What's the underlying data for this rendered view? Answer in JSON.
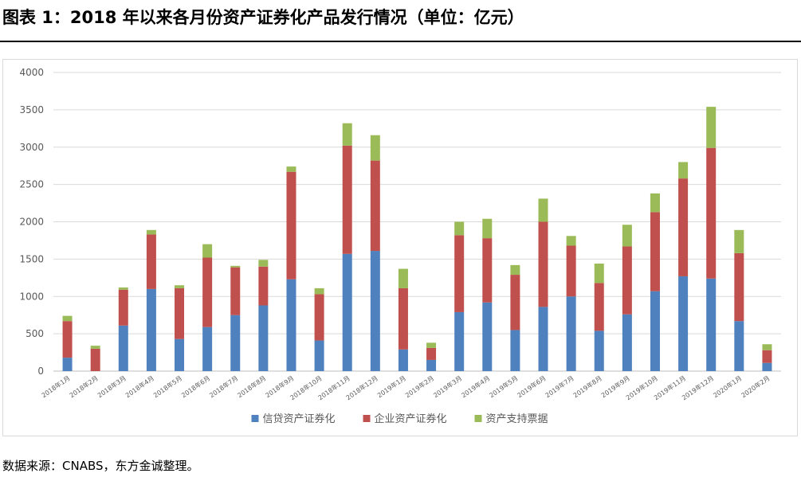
{
  "title": "图表 1：2018 年以来各月份资产证券化产品发行情况（单位：亿元）",
  "source": "数据来源：CNABS，东方金诚整理。",
  "colors": {
    "credit": "#4e81bd",
    "enterprise": "#c0504d",
    "abn": "#9bbb59",
    "grid": "#d9d9d9",
    "axis_text": "#595959"
  },
  "chart_data": {
    "type": "bar",
    "stacked": true,
    "title": "",
    "xlabel": "",
    "ylabel": "",
    "ylim": [
      0,
      4000
    ],
    "yticks": [
      0,
      500,
      1000,
      1500,
      2000,
      2500,
      3000,
      3500,
      4000
    ],
    "grid": true,
    "legend_position": "bottom",
    "categories": [
      "2018年1月",
      "2018年2月",
      "2018年3月",
      "2018年4月",
      "2018年5月",
      "2018年6月",
      "2018年7月",
      "2018年8月",
      "2018年9月",
      "2018年10月",
      "2018年11月",
      "2018年12月",
      "2019年1月",
      "2019年2月",
      "2019年3月",
      "2019年4月",
      "2019年5月",
      "2019年6月",
      "2019年7月",
      "2019年8月",
      "2019年9月",
      "2019年10月",
      "2019年11月",
      "2019年12月",
      "2020年1月",
      "2020年2月"
    ],
    "series": [
      {
        "name": "信贷资产证券化",
        "color": "#4e81bd",
        "values": [
          180,
          0,
          610,
          1100,
          430,
          590,
          750,
          880,
          1230,
          410,
          1570,
          1610,
          290,
          150,
          790,
          920,
          550,
          860,
          1000,
          540,
          760,
          1070,
          1270,
          1240,
          670,
          110
        ]
      },
      {
        "name": "企业资产证券化",
        "color": "#c0504d",
        "values": [
          490,
          300,
          480,
          730,
          680,
          930,
          640,
          520,
          1440,
          620,
          1450,
          1210,
          820,
          160,
          1030,
          860,
          740,
          1140,
          680,
          640,
          910,
          1060,
          1310,
          1750,
          910,
          170
        ]
      },
      {
        "name": "资产支持票据",
        "color": "#9bbb59",
        "values": [
          70,
          40,
          30,
          60,
          40,
          180,
          20,
          90,
          70,
          80,
          300,
          340,
          260,
          70,
          180,
          260,
          130,
          310,
          130,
          260,
          290,
          250,
          220,
          550,
          310,
          80
        ]
      }
    ]
  }
}
